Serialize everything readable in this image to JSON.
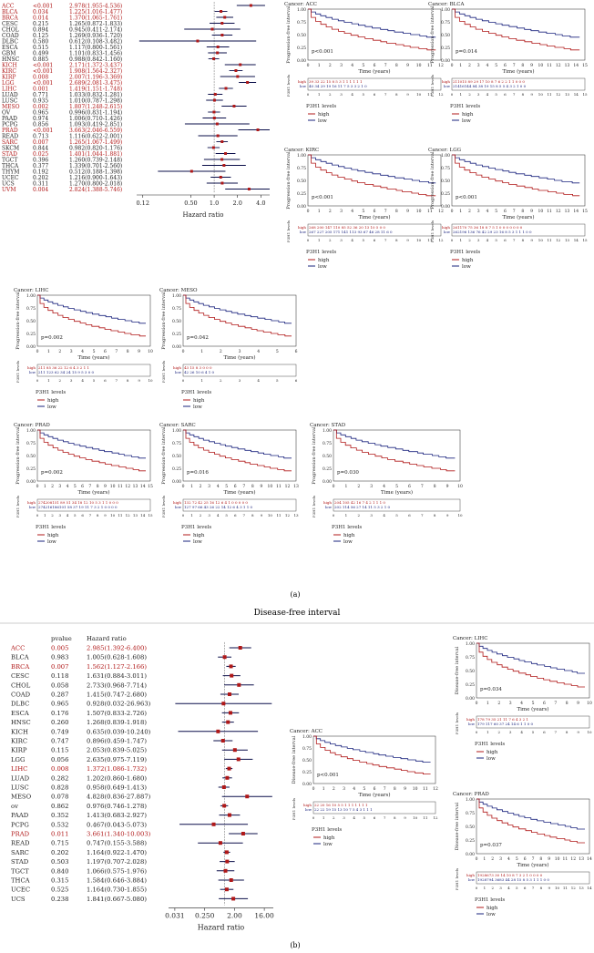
{
  "panel_a": {
    "label": "(a)",
    "forest": {
      "rows": [
        {
          "cancer": "ACC",
          "p": "<0.001",
          "hr": "2.978(1.955-4.536)",
          "sig": true,
          "est": 2.978,
          "lo": 1.955,
          "hi": 4.536
        },
        {
          "cancer": "BLCA",
          "p": "0.034",
          "hr": "1.225(1.016-1.477)",
          "sig": true,
          "est": 1.225,
          "lo": 1.016,
          "hi": 1.477
        },
        {
          "cancer": "BRCA",
          "p": "0.014",
          "hr": "1.370(1.065-1.761)",
          "sig": true,
          "est": 1.37,
          "lo": 1.065,
          "hi": 1.761
        },
        {
          "cancer": "CESC",
          "p": "0.215",
          "hr": "1.265(0.872-1.833)",
          "sig": false,
          "est": 1.265,
          "lo": 0.872,
          "hi": 1.833
        },
        {
          "cancer": "CHOL",
          "p": "0.894",
          "hr": "0.945(0.411-2.174)",
          "sig": false,
          "est": 0.945,
          "lo": 0.411,
          "hi": 2.174
        },
        {
          "cancer": "COAD",
          "p": "0.125",
          "hr": "1.269(0.936-1.720)",
          "sig": false,
          "est": 1.269,
          "lo": 0.936,
          "hi": 1.72
        },
        {
          "cancer": "DLBC",
          "p": "0.580",
          "hr": "0.612(0.108-3.482)",
          "sig": false,
          "est": 0.612,
          "lo": 0.108,
          "hi": 3.482
        },
        {
          "cancer": "ESCA",
          "p": "0.515",
          "hr": "1.117(0.800-1.561)",
          "sig": false,
          "est": 1.117,
          "lo": 0.8,
          "hi": 1.561
        },
        {
          "cancer": "GBM",
          "p": "0.499",
          "hr": "1.101(0.833-1.456)",
          "sig": false,
          "est": 1.101,
          "lo": 0.833,
          "hi": 1.456
        },
        {
          "cancer": "HNSC",
          "p": "0.885",
          "hr": "0.988(0.842-1.160)",
          "sig": false,
          "est": 0.988,
          "lo": 0.842,
          "hi": 1.16
        },
        {
          "cancer": "KICH",
          "p": "<0.001",
          "hr": "2.171(1.372-3.437)",
          "sig": true,
          "est": 2.171,
          "lo": 1.372,
          "hi": 3.437
        },
        {
          "cancer": "KIRC",
          "p": "<0.001",
          "hr": "1.908(1.564-2.327)",
          "sig": true,
          "est": 1.908,
          "lo": 1.564,
          "hi": 2.327
        },
        {
          "cancer": "KIRP",
          "p": "0.008",
          "hr": "2.007(1.196-3.369)",
          "sig": true,
          "est": 2.007,
          "lo": 1.196,
          "hi": 3.369
        },
        {
          "cancer": "LGG",
          "p": "<0.001",
          "hr": "2.689(2.081-3.475)",
          "sig": true,
          "est": 2.689,
          "lo": 2.081,
          "hi": 3.475
        },
        {
          "cancer": "LIHC",
          "p": "0.001",
          "hr": "1.419(1.151-1.748)",
          "sig": true,
          "est": 1.419,
          "lo": 1.151,
          "hi": 1.748
        },
        {
          "cancer": "LUAD",
          "p": "0.771",
          "hr": "1.033(0.832-1.281)",
          "sig": false,
          "est": 1.033,
          "lo": 0.832,
          "hi": 1.281
        },
        {
          "cancer": "LUSC",
          "p": "0.935",
          "hr": "1.010(0.787-1.298)",
          "sig": false,
          "est": 1.01,
          "lo": 0.787,
          "hi": 1.298
        },
        {
          "cancer": "MESO",
          "p": "0.002",
          "hr": "1.807(1.248-2.615)",
          "sig": true,
          "est": 1.807,
          "lo": 1.248,
          "hi": 2.615
        },
        {
          "cancer": "OV",
          "p": "0.965",
          "hr": "0.996(0.831-1.194)",
          "sig": false,
          "est": 0.996,
          "lo": 0.831,
          "hi": 1.194
        },
        {
          "cancer": "PAAD",
          "p": "0.974",
          "hr": "1.006(0.710-1.426)",
          "sig": false,
          "est": 1.006,
          "lo": 0.71,
          "hi": 1.426
        },
        {
          "cancer": "PCPG",
          "p": "0.856",
          "hr": "1.093(0.419-2.851)",
          "sig": false,
          "est": 1.093,
          "lo": 0.419,
          "hi": 2.851
        },
        {
          "cancer": "PRAD",
          "p": "<0.001",
          "hr": "3.663(2.046-6.559)",
          "sig": true,
          "est": 3.663,
          "lo": 2.046,
          "hi": 6.559
        },
        {
          "cancer": "READ",
          "p": "0.713",
          "hr": "1.116(0.622-2.001)",
          "sig": false,
          "est": 1.116,
          "lo": 0.622,
          "hi": 2.001
        },
        {
          "cancer": "SARC",
          "p": "0.007",
          "hr": "1.265(1.067-1.499)",
          "sig": true,
          "est": 1.265,
          "lo": 1.067,
          "hi": 1.499
        },
        {
          "cancer": "SKCM",
          "p": "0.844",
          "hr": "0.982(0.820-1.176)",
          "sig": false,
          "est": 0.982,
          "lo": 0.82,
          "hi": 1.176
        },
        {
          "cancer": "STAD",
          "p": "0.025",
          "hr": "1.401(1.044-1.881)",
          "sig": true,
          "est": 1.401,
          "lo": 1.044,
          "hi": 1.881
        },
        {
          "cancer": "TGCT",
          "p": "0.396",
          "hr": "1.260(0.739-2.148)",
          "sig": false,
          "est": 1.26,
          "lo": 0.739,
          "hi": 2.148
        },
        {
          "cancer": "THCA",
          "p": "0.377",
          "hr": "1.339(0.701-2.560)",
          "sig": false,
          "est": 1.339,
          "lo": 0.701,
          "hi": 2.56
        },
        {
          "cancer": "THYM",
          "p": "0.192",
          "hr": "0.512(0.188-1.398)",
          "sig": false,
          "est": 0.512,
          "lo": 0.188,
          "hi": 1.398
        },
        {
          "cancer": "UCEC",
          "p": "0.202",
          "hr": "1.216(0.900-1.643)",
          "sig": false,
          "est": 1.216,
          "lo": 0.9,
          "hi": 1.643
        },
        {
          "cancer": "UCS",
          "p": "0.311",
          "hr": "1.270(0.800-2.018)",
          "sig": false,
          "est": 1.27,
          "lo": 0.8,
          "hi": 2.018
        },
        {
          "cancer": "UVM",
          "p": "0.004",
          "hr": "2.824(1.388-5.746)",
          "sig": true,
          "est": 2.824,
          "lo": 1.388,
          "hi": 5.746
        }
      ],
      "ticks": [
        "0.12",
        "0.50",
        "1.0",
        "2.0",
        "4.0"
      ],
      "tick_values": [
        0.12,
        0.5,
        1.0,
        2.0,
        4.0
      ],
      "xlim": [
        0.1,
        5.2
      ],
      "xlabel": "Hazard ratio"
    },
    "km": [
      {
        "title": "Cancer: ACC",
        "pval": "p<0.001",
        "ylabel": "Progression-free interval",
        "xmax": 12,
        "risk_high": "39 33 22 15 8 5 3 1 1 1 1 1 1",
        "risk_low": "40 34 29 19 16 11 7 5 3 3 2 1 0"
      },
      {
        "title": "Cancer: BLCA",
        "pval": "p=0.014",
        "ylabel": "Progression-free interval",
        "xmax": 15,
        "risk_high": "211015 89 29 17 10 8 7 6 2 2 1 1 0 0 0",
        "risk_low": "21416144 84 38 19 15 8 5 5 4 3 2 1 0 0"
      },
      {
        "title": "Cancer: KIRC",
        "pval": "p<0.001",
        "ylabel": "Progression-free interval",
        "xmax": 12,
        "risk_high": "268 200 147 110 85 52 36 20 13 10 5 0 0",
        "risk_low": "267 227 205 171 141 113 93 67 46 28 11 6 0"
      },
      {
        "title": "Cancer: LGG",
        "pval": "p<0.001",
        "ylabel": "Progression-free interval",
        "xmax": 15,
        "risk_high": "261170 75 36 18 8 7 5 1 0 0 0 0 0 0 0",
        "risk_low": "262196 136 76 42 29 23 16 8 5 3 1 1 1 0 0"
      },
      {
        "title": "Cancer: LIHC",
        "pval": "p=0.002",
        "ylabel": "Progression-free interval",
        "xmax": 10,
        "risk_high": "211 85 36 22 12 6 4 3 2 1 1",
        "risk_low": "211 123 62 34 24 15 9 5 3 0 0"
      },
      {
        "title": "Cancer: MESO",
        "pval": "p=0.042",
        "ylabel": "Progression-free interval",
        "xmax": 6,
        "risk_high": "43 15 8 3 0 0 0",
        "risk_low": "42 26 10 6 4 1 0"
      },
      {
        "title": "Cancer: PRAD",
        "pval": "p=0.002",
        "ylabel": "Progression-free interval",
        "xmax": 15,
        "risk_high": "274208151 89 51 34 18 12 10 5 3 1 1 0 0 0",
        "risk_low": "274216186101 58 37 19 11 7 3 2 1 0 0 0 0"
      },
      {
        "title": "Cancer: SARC",
        "pval": "p=0.016",
        "ylabel": "Progression-free interval",
        "xmax": 13,
        "risk_high": "132 72 42 25 16 12 6 4 1 0 0 0 0 0",
        "risk_low": "127 97 66 43 26 22 14 12 6 4 3 1 1 0"
      },
      {
        "title": "Cancer: STAD",
        "pval": "p=0.030",
        "ylabel": "Progression-free interval",
        "xmax": 10,
        "risk_high": "204 105 42 16 7 4 2 1 1 1 0",
        "risk_low": "202 114 56 27 14 11 5 3 2 1 0"
      }
    ]
  },
  "panel_b": {
    "label": "(b)",
    "title": "Disease-free interval",
    "forest": {
      "col_pvalue": "pvalue",
      "col_hr": "Hazard ratio",
      "rows": [
        {
          "cancer": "ACC",
          "p": "0.005",
          "hr": "2.985(1.392-6.400)",
          "sig": true,
          "est": 2.985,
          "lo": 1.392,
          "hi": 6.4
        },
        {
          "cancer": "BLCA",
          "p": "0.983",
          "hr": "1.005(0.628-1.608)",
          "sig": false,
          "est": 1.005,
          "lo": 0.628,
          "hi": 1.608
        },
        {
          "cancer": "BRCA",
          "p": "0.007",
          "hr": "1.562(1.127-2.166)",
          "sig": true,
          "est": 1.562,
          "lo": 1.127,
          "hi": 2.166
        },
        {
          "cancer": "CESC",
          "p": "0.118",
          "hr": "1.631(0.884-3.011)",
          "sig": false,
          "est": 1.631,
          "lo": 0.884,
          "hi": 3.011
        },
        {
          "cancer": "CHOL",
          "p": "0.058",
          "hr": "2.733(0.968-7.714)",
          "sig": false,
          "est": 2.733,
          "lo": 0.968,
          "hi": 7.714
        },
        {
          "cancer": "COAD",
          "p": "0.287",
          "hr": "1.415(0.747-2.680)",
          "sig": false,
          "est": 1.415,
          "lo": 0.747,
          "hi": 2.68
        },
        {
          "cancer": "DLBC",
          "p": "0.965",
          "hr": "0.928(0.032-26.963)",
          "sig": false,
          "est": 0.928,
          "lo": 0.032,
          "hi": 26.963
        },
        {
          "cancer": "ESCA",
          "p": "0.176",
          "hr": "1.507(0.833-2.726)",
          "sig": false,
          "est": 1.507,
          "lo": 0.833,
          "hi": 2.726
        },
        {
          "cancer": "HNSC",
          "p": "0.260",
          "hr": "1.268(0.839-1.918)",
          "sig": false,
          "est": 1.268,
          "lo": 0.839,
          "hi": 1.918
        },
        {
          "cancer": "KICH",
          "p": "0.749",
          "hr": "0.635(0.039-10.240)",
          "sig": false,
          "est": 0.635,
          "lo": 0.039,
          "hi": 10.24
        },
        {
          "cancer": "KIRC",
          "p": "0.747",
          "hr": "0.896(0.459-1.747)",
          "sig": false,
          "est": 0.896,
          "lo": 0.459,
          "hi": 1.747
        },
        {
          "cancer": "KIRP",
          "p": "0.115",
          "hr": "2.053(0.839-5.025)",
          "sig": false,
          "est": 2.053,
          "lo": 0.839,
          "hi": 5.025
        },
        {
          "cancer": "LGG",
          "p": "0.056",
          "hr": "2.635(0.975-7.119)",
          "sig": false,
          "est": 2.635,
          "lo": 0.975,
          "hi": 7.119
        },
        {
          "cancer": "LIHC",
          "p": "0.008",
          "hr": "1.372(1.086-1.732)",
          "sig": true,
          "est": 1.372,
          "lo": 1.086,
          "hi": 1.732
        },
        {
          "cancer": "LUAD",
          "p": "0.282",
          "hr": "1.202(0.860-1.680)",
          "sig": false,
          "est": 1.202,
          "lo": 0.86,
          "hi": 1.68
        },
        {
          "cancer": "LUSC",
          "p": "0.828",
          "hr": "0.958(0.649-1.413)",
          "sig": false,
          "est": 0.958,
          "lo": 0.649,
          "hi": 1.413
        },
        {
          "cancer": "MESO",
          "p": "0.078",
          "hr": "4.828(0.836-27.887)",
          "sig": false,
          "est": 4.828,
          "lo": 0.836,
          "hi": 27.887
        },
        {
          "cancer": "ov",
          "p": "0.862",
          "hr": "0.976(0.746-1.278)",
          "sig": false,
          "est": 0.976,
          "lo": 0.746,
          "hi": 1.278
        },
        {
          "cancer": "PAAD",
          "p": "0.352",
          "hr": "1.413(0.683-2.927)",
          "sig": false,
          "est": 1.413,
          "lo": 0.683,
          "hi": 2.927
        },
        {
          "cancer": "PCPG",
          "p": "0.532",
          "hr": "0.467(0.043-5.073)",
          "sig": false,
          "est": 0.467,
          "lo": 0.043,
          "hi": 5.073
        },
        {
          "cancer": "PRAD",
          "p": "0.011",
          "hr": "3.661(1.340-10.003)",
          "sig": true,
          "est": 3.661,
          "lo": 1.34,
          "hi": 10.003
        },
        {
          "cancer": "READ",
          "p": "0.715",
          "hr": "0.747(0.155-3.588)",
          "sig": false,
          "est": 0.747,
          "lo": 0.155,
          "hi": 3.588
        },
        {
          "cancer": "SARC",
          "p": "0.202",
          "hr": "1.164(0.922-1.470)",
          "sig": false,
          "est": 1.164,
          "lo": 0.922,
          "hi": 1.47
        },
        {
          "cancer": "STAD",
          "p": "0.503",
          "hr": "1.197(0.707-2.028)",
          "sig": false,
          "est": 1.197,
          "lo": 0.707,
          "hi": 2.028
        },
        {
          "cancer": "TGCT",
          "p": "0.840",
          "hr": "1.066(0.575-1.976)",
          "sig": false,
          "est": 1.066,
          "lo": 0.575,
          "hi": 1.976
        },
        {
          "cancer": "THCA",
          "p": "0.315",
          "hr": "1.584(0.646-3.884)",
          "sig": false,
          "est": 1.584,
          "lo": 0.646,
          "hi": 3.884
        },
        {
          "cancer": "UCEC",
          "p": "0.525",
          "hr": "1.164(0.730-1.855)",
          "sig": false,
          "est": 1.164,
          "lo": 0.73,
          "hi": 1.855
        },
        {
          "cancer": "UCS",
          "p": "0.238",
          "hr": "1.841(0.667-5.080)",
          "sig": false,
          "est": 1.841,
          "lo": 0.667,
          "hi": 5.08
        }
      ],
      "ticks": [
        "0.031",
        "0.250",
        "2.00",
        "16.00"
      ],
      "tick_values": [
        0.031,
        0.25,
        2.0,
        16.0
      ],
      "xlim": [
        0.02,
        30
      ],
      "xlabel": "Hazard ratio"
    },
    "km": [
      {
        "title": "Cancer: ACC",
        "pval": "p<0.001",
        "ylabel": "Disease-free interval",
        "xmax": 12,
        "risk_high": "22 20 16 10 5 5 1 1 1 1 1 1 1",
        "risk_low": "22 22 19 15 13 10 7 5 4 3 1 1 1"
      },
      {
        "title": "Cancer: LIHC",
        "pval": "p=0.034",
        "ylabel": "Disease-free interval",
        "xmax": 10,
        "risk_high": "178 79 35 21 11 7 6 4 3 2 1",
        "risk_low": "179 117 60 37 24 14 6 1 1 0 0"
      },
      {
        "title": "Cancer: PRAD",
        "pval": "p=0.037",
        "ylabel": "Disease-free interval",
        "xmax": 14,
        "risk_high": "1928673 30 14 10 8 7 3 2 1 0 0 0 0",
        "risk_low": "1928794 3683 44 28 15 8 5 3 1 1 1 0 0"
      }
    ]
  },
  "common": {
    "ytick_labels": [
      "0.00",
      "0.25",
      "0.50",
      "0.75",
      "1.00"
    ],
    "xlabel": "Time (years)",
    "risk_label": "P3H1 levels",
    "legend_title": "P3H1 levels",
    "group_high": "high",
    "group_low": "low",
    "color_high": "#b01818",
    "color_low": "#1a237e",
    "color_sig_text": "#b01818",
    "color_box": "#b01818",
    "color_ci": "#0b0f4a"
  }
}
